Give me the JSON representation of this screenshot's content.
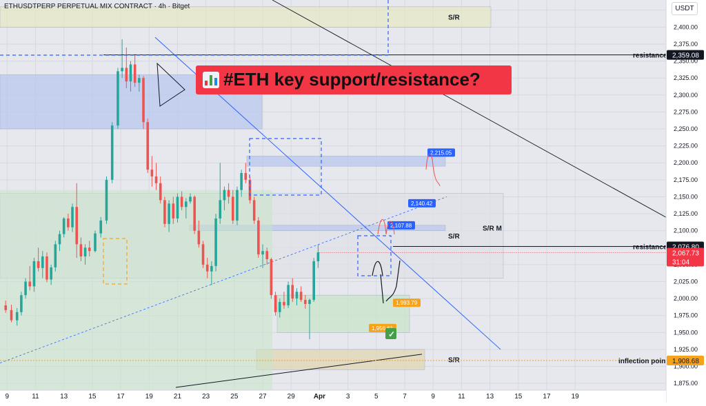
{
  "header": {
    "symbol_line": "ETHUSDTPERP PERPETUAL MIX CONTRACT · 4h · Bitget",
    "currency_unit": "USDT"
  },
  "title_banner": {
    "icon": "bar-chart-icon",
    "text": "#ETH key support/resistance?"
  },
  "colors": {
    "up": "#26a69a",
    "down": "#ef5350",
    "banner": "#f23645",
    "label_blue": "#2962ff",
    "label_orange": "#f7a21b",
    "last_price": "#f23645",
    "zone_blue": "#b8c6f0",
    "zone_green": "#c8e6c9",
    "zone_olive": "#e6e8c4",
    "zone_grey": "#dfe1e8",
    "zone_tan": "#e3d5b0"
  },
  "chart_data": {
    "type": "candlestick",
    "title": "#ETH key support/resistance?",
    "timeframe": "4h",
    "x_ticks": [
      "9",
      "11",
      "13",
      "15",
      "17",
      "19",
      "21",
      "23",
      "25",
      "27",
      "29",
      "Apr",
      "3",
      "5",
      "7",
      "9",
      "11",
      "13",
      "15",
      "17",
      "19"
    ],
    "y_ticks": [
      "1,875.00",
      "1,900.00",
      "1,925.00",
      "1,950.00",
      "1,975.00",
      "2,000.00",
      "2,025.00",
      "2,050.00",
      "2,075.00",
      "2,100.00",
      "2,125.00",
      "2,150.00",
      "2,175.00",
      "2,200.00",
      "2,225.00",
      "2,250.00",
      "2,275.00",
      "2,300.00",
      "2,325.00",
      "2,350.00",
      "2,375.00",
      "2,400.00",
      "2,425.00"
    ],
    "ylim": [
      1865,
      2440
    ],
    "xlim": [
      8.5,
      55.4
    ],
    "grid": true,
    "candles": [
      [
        8.9,
        1990,
        1997,
        1979,
        1983
      ],
      [
        9.3,
        1983,
        1991,
        1965,
        1968
      ],
      [
        9.7,
        1968,
        1986,
        1960,
        1980
      ],
      [
        10.0,
        1980,
        2010,
        1975,
        2005
      ],
      [
        10.3,
        2005,
        2030,
        2000,
        2025
      ],
      [
        10.6,
        2025,
        2048,
        2012,
        2018
      ],
      [
        10.9,
        2018,
        2060,
        2010,
        2055
      ],
      [
        11.2,
        2055,
        2075,
        2040,
        2045
      ],
      [
        11.5,
        2045,
        2070,
        2030,
        2062
      ],
      [
        11.8,
        2062,
        2068,
        2024,
        2028
      ],
      [
        12.1,
        2028,
        2050,
        2020,
        2046
      ],
      [
        12.4,
        2046,
        2085,
        2040,
        2080
      ],
      [
        12.7,
        2080,
        2100,
        2070,
        2095
      ],
      [
        13.0,
        2095,
        2120,
        2090,
        2118
      ],
      [
        13.3,
        2118,
        2125,
        2100,
        2105
      ],
      [
        13.6,
        2105,
        2140,
        2098,
        2135
      ],
      [
        13.9,
        2135,
        2170,
        2060,
        2080
      ],
      [
        14.2,
        2080,
        2090,
        2055,
        2062
      ],
      [
        14.5,
        2062,
        2080,
        2050,
        2075
      ],
      [
        14.8,
        2075,
        2085,
        2062,
        2070
      ],
      [
        15.2,
        2070,
        2100,
        2068,
        2096
      ],
      [
        15.6,
        2096,
        2120,
        2090,
        2115
      ],
      [
        16.0,
        2115,
        2180,
        2110,
        2175
      ],
      [
        16.4,
        2175,
        2260,
        2170,
        2255
      ],
      [
        16.8,
        2255,
        2340,
        2250,
        2335
      ],
      [
        17.1,
        2335,
        2382,
        2325,
        2340
      ],
      [
        17.4,
        2340,
        2370,
        2310,
        2320
      ],
      [
        17.7,
        2320,
        2350,
        2305,
        2345
      ],
      [
        18.0,
        2345,
        2360,
        2312,
        2318
      ],
      [
        18.3,
        2318,
        2330,
        2305,
        2325
      ],
      [
        18.6,
        2325,
        2328,
        2250,
        2260
      ],
      [
        18.9,
        2260,
        2265,
        2185,
        2190
      ],
      [
        19.2,
        2190,
        2210,
        2165,
        2180
      ],
      [
        19.5,
        2180,
        2200,
        2160,
        2170
      ],
      [
        19.8,
        2170,
        2180,
        2140,
        2145
      ],
      [
        20.1,
        2145,
        2150,
        2105,
        2110
      ],
      [
        20.4,
        2110,
        2145,
        2098,
        2140
      ],
      [
        20.7,
        2140,
        2150,
        2110,
        2118
      ],
      [
        21.0,
        2118,
        2155,
        2112,
        2150
      ],
      [
        21.3,
        2150,
        2158,
        2130,
        2135
      ],
      [
        21.6,
        2135,
        2148,
        2118,
        2143
      ],
      [
        21.9,
        2143,
        2155,
        2140,
        2150
      ],
      [
        22.2,
        2150,
        2152,
        2095,
        2100
      ],
      [
        22.5,
        2100,
        2115,
        2075,
        2080
      ],
      [
        22.8,
        2080,
        2085,
        2045,
        2050
      ],
      [
        23.1,
        2050,
        2060,
        2030,
        2040
      ],
      [
        23.4,
        2040,
        2055,
        2020,
        2048
      ],
      [
        23.7,
        2048,
        2125,
        2040,
        2118
      ],
      [
        24.0,
        2118,
        2200,
        2110,
        2145
      ],
      [
        24.3,
        2145,
        2165,
        2130,
        2160
      ],
      [
        24.6,
        2160,
        2170,
        2140,
        2150
      ],
      [
        24.9,
        2150,
        2160,
        2110,
        2115
      ],
      [
        25.2,
        2115,
        2165,
        2108,
        2160
      ],
      [
        25.5,
        2160,
        2190,
        2150,
        2185
      ],
      [
        25.8,
        2185,
        2200,
        2170,
        2175
      ],
      [
        26.1,
        2175,
        2180,
        2140,
        2145
      ],
      [
        26.4,
        2145,
        2150,
        2110,
        2115
      ],
      [
        26.7,
        2115,
        2120,
        2060,
        2065
      ],
      [
        27.0,
        2065,
        2080,
        2045,
        2070
      ],
      [
        27.3,
        2070,
        2075,
        2050,
        2058
      ],
      [
        27.6,
        2058,
        2060,
        2000,
        2005
      ],
      [
        27.9,
        2005,
        2010,
        1975,
        1980
      ],
      [
        28.2,
        1980,
        2000,
        1972,
        1995
      ],
      [
        28.5,
        1995,
        2010,
        1985,
        1990
      ],
      [
        28.8,
        1990,
        2025,
        1986,
        2020
      ],
      [
        29.1,
        2020,
        2030,
        1995,
        2000
      ],
      [
        29.4,
        2000,
        2015,
        1990,
        2010
      ],
      [
        29.7,
        2010,
        2018,
        1995,
        1998
      ],
      [
        30.0,
        1998,
        2005,
        1985,
        1992
      ],
      [
        30.3,
        1992,
        2000,
        1940,
        1998
      ],
      [
        30.6,
        1998,
        2060,
        1995,
        2055
      ],
      [
        30.9,
        2055,
        2080,
        2045,
        2068
      ]
    ],
    "zones": [
      {
        "low": 2400,
        "high": 2430,
        "label": "S/R"
      },
      {
        "low": 2250,
        "high": 2330,
        "label": ""
      },
      {
        "low": 2195,
        "high": 2210,
        "label": ""
      },
      {
        "low": 2030,
        "high": 2155,
        "label": "S/R"
      },
      {
        "low": 2100,
        "high": 2108,
        "label": "S/R M"
      },
      {
        "low": 1950,
        "high": 2005,
        "label": ""
      },
      {
        "low": 1895,
        "high": 1925,
        "label": "S/R"
      }
    ],
    "horizontal_levels": [
      {
        "label": "resistance",
        "price_tag": "2,359.08",
        "value": 2359.08
      },
      {
        "label": "resistance",
        "price_tag": "2,076.80",
        "value": 2076.8
      },
      {
        "label": "inflection point",
        "price_tag": "1,908.68",
        "value": 1908.68
      }
    ],
    "last_price": {
      "value": "2,067.73",
      "countdown": "31:04"
    },
    "projection_labels": [
      {
        "text": "2,215.05",
        "value": 2215.05,
        "color": "blue"
      },
      {
        "text": "2,140.42",
        "value": 2140.42,
        "color": "blue"
      },
      {
        "text": "2,107.88",
        "value": 2107.88,
        "color": "blue"
      },
      {
        "text": "1,993.79",
        "value": 1993.79,
        "color": "orange"
      },
      {
        "text": "1,956.61",
        "value": 1956.61,
        "color": "orange"
      }
    ],
    "annotations": [
      "check-mark-icon"
    ]
  }
}
